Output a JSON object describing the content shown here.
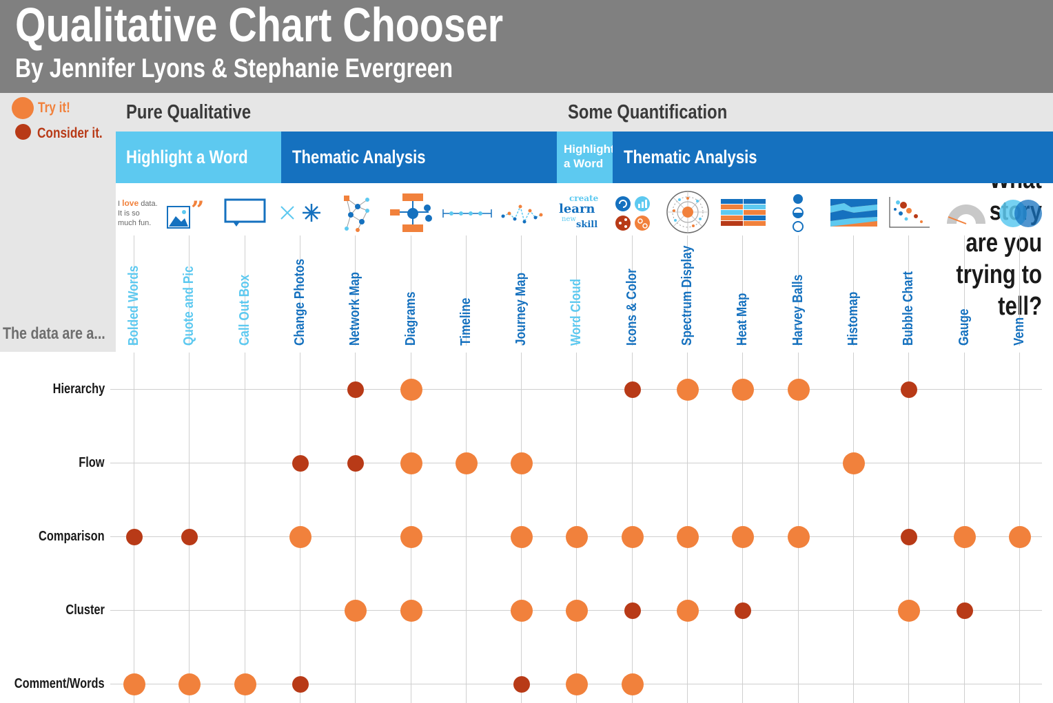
{
  "header": {
    "title": "Qualitative Chart Chooser",
    "subtitle": "By Jennifer Lyons & Stephanie Evergreen"
  },
  "legend": {
    "try": {
      "label": "Try it!",
      "color": "#f1813c"
    },
    "consider": {
      "label": "Consider it.",
      "color": "#b83a17"
    }
  },
  "question": {
    "lines": [
      "What",
      "story",
      "are you",
      "trying to",
      "tell?"
    ],
    "data_are": "The data are a..."
  },
  "sections": [
    {
      "label": "Pure Qualitative"
    },
    {
      "label": "Some Quantification"
    }
  ],
  "bands": [
    {
      "label": "Highlight a Word",
      "color": "#5dc9f0"
    },
    {
      "label": "Thematic Analysis",
      "color": "#1571bf"
    },
    {
      "label": "Highlight a Word",
      "color": "#5dc9f0"
    },
    {
      "label": "Thematic Analysis",
      "color": "#1571bf"
    }
  ],
  "icon_text": {
    "bolded_words": {
      "lead": "I ",
      "highlight": "love",
      "rest1": " data.",
      "line2": "It is so",
      "line3": "much fun."
    },
    "word_cloud": {
      "w1": "create",
      "w2": "learn",
      "w3": "new",
      "w4": "skill"
    }
  },
  "columns": [
    {
      "label": "Bolded Words",
      "color": "#5dc9f0",
      "icon": "bolded-words-icon"
    },
    {
      "label": "Quote and Pic",
      "color": "#5dc9f0",
      "icon": "quote-pic-icon"
    },
    {
      "label": "Call Out Box",
      "color": "#5dc9f0",
      "icon": "callout-box-icon"
    },
    {
      "label": "Change Photos",
      "color": "#1571bf",
      "icon": "change-photos-icon"
    },
    {
      "label": "Network Map",
      "color": "#1571bf",
      "icon": "network-map-icon"
    },
    {
      "label": "Diagrams",
      "color": "#1571bf",
      "icon": "diagrams-icon"
    },
    {
      "label": "Timeline",
      "color": "#1571bf",
      "icon": "timeline-icon"
    },
    {
      "label": "Journey Map",
      "color": "#1571bf",
      "icon": "journey-map-icon"
    },
    {
      "label": "Word Cloud",
      "color": "#5dc9f0",
      "icon": "word-cloud-icon"
    },
    {
      "label": "Icons & Color",
      "color": "#1571bf",
      "icon": "icons-color-icon"
    },
    {
      "label": "Spectrum Display",
      "color": "#1571bf",
      "icon": "spectrum-display-icon"
    },
    {
      "label": "Heat Map",
      "color": "#1571bf",
      "icon": "heat-map-icon"
    },
    {
      "label": "Harvey Balls",
      "color": "#1571bf",
      "icon": "harvey-balls-icon"
    },
    {
      "label": "Histomap",
      "color": "#1571bf",
      "icon": "histomap-icon"
    },
    {
      "label": "Bubble Chart",
      "color": "#1571bf",
      "icon": "bubble-chart-icon"
    },
    {
      "label": "Gauge",
      "color": "#1571bf",
      "icon": "gauge-icon"
    },
    {
      "label": "Venn",
      "color": "#1571bf",
      "icon": "venn-icon"
    }
  ],
  "rows": [
    {
      "label": "Hierarchy",
      "marks": {
        "Network Map": "consider",
        "Diagrams": "try",
        "Icons & Color": "consider",
        "Spectrum Display": "try",
        "Heat Map": "try",
        "Harvey Balls": "try",
        "Bubble Chart": "consider"
      }
    },
    {
      "label": "Flow",
      "marks": {
        "Change Photos": "consider",
        "Network Map": "consider",
        "Diagrams": "try",
        "Timeline": "try",
        "Journey Map": "try",
        "Histomap": "try"
      }
    },
    {
      "label": "Comparison",
      "marks": {
        "Bolded Words": "consider",
        "Quote and Pic": "consider",
        "Change Photos": "try",
        "Diagrams": "try",
        "Journey Map": "try",
        "Word Cloud": "try",
        "Icons & Color": "try",
        "Spectrum Display": "try",
        "Heat Map": "try",
        "Harvey Balls": "try",
        "Bubble Chart": "consider",
        "Gauge": "try",
        "Venn": "try"
      }
    },
    {
      "label": "Cluster",
      "marks": {
        "Network Map": "try",
        "Diagrams": "try",
        "Journey Map": "try",
        "Word Cloud": "try",
        "Icons & Color": "consider",
        "Spectrum Display": "try",
        "Heat Map": "consider",
        "Bubble Chart": "try",
        "Gauge": "consider"
      }
    },
    {
      "label": "Comment/Words",
      "marks": {
        "Bolded Words": "try",
        "Quote and Pic": "try",
        "Call Out Box": "try",
        "Change Photos": "consider",
        "Journey Map": "consider",
        "Word Cloud": "try",
        "Icons & Color": "try"
      }
    }
  ]
}
